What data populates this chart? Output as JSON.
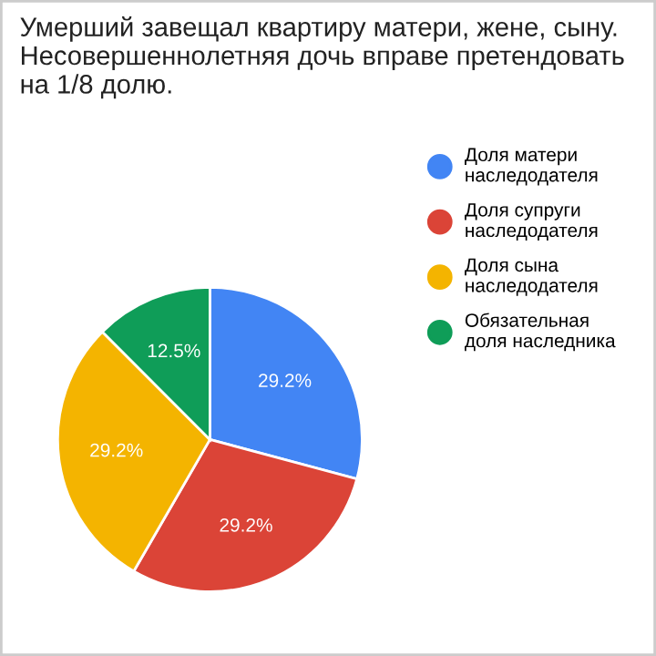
{
  "chart_data": {
    "type": "pie",
    "title": "Умерший завещал квартиру матери, жене, сыну. Несовершеннолетняя дочь вправе претендовать на 1/8 долю.",
    "categories": [
      "Доля матери\nнаследодателя",
      "Доля супруги\nнаследодателя",
      "Доля сына\nнаследодателя",
      "Обязательная\nдоля наследника"
    ],
    "values": [
      29.2,
      29.2,
      29.2,
      12.5
    ],
    "value_labels": [
      "29.2%",
      "29.2%",
      "29.2%",
      "12.5%"
    ],
    "colors": [
      "#4285f4",
      "#db4437",
      "#f4b400",
      "#0f9d58"
    ],
    "legend": "right"
  }
}
